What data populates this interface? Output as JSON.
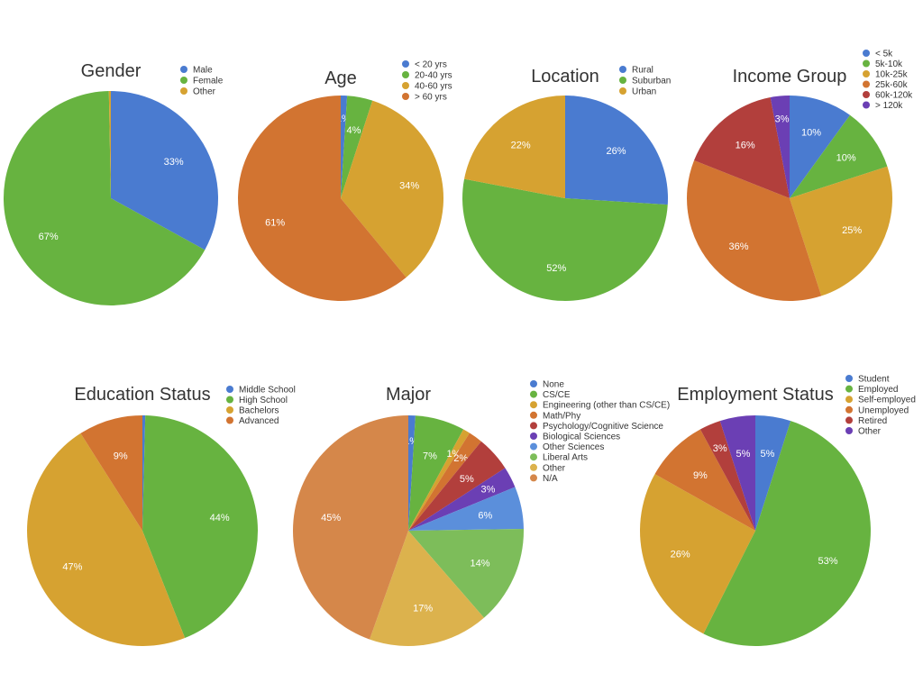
{
  "chart_data": [
    {
      "type": "pie",
      "title": "Gender",
      "slices": [
        {
          "label": "Male",
          "value": 33,
          "color": "#4a7bd0"
        },
        {
          "label": "Female",
          "value": 66.7,
          "color": "#67b340"
        },
        {
          "label": "Other",
          "value": 0.3,
          "color": "#d6a231"
        }
      ],
      "value_labels": [
        "33%",
        "67%",
        ""
      ]
    },
    {
      "type": "pie",
      "title": "Age",
      "slices": [
        {
          "label": "< 20 yrs",
          "value": 1,
          "color": "#4a7bd0"
        },
        {
          "label": "20-40 yrs",
          "value": 4,
          "color": "#67b340"
        },
        {
          "label": "40-60 yrs",
          "value": 34,
          "color": "#d6a231"
        },
        {
          "label": "> 60 yrs",
          "value": 61,
          "color": "#d27431"
        }
      ],
      "value_labels": [
        "1%",
        "4%",
        "34%",
        "61%"
      ]
    },
    {
      "type": "pie",
      "title": "Location",
      "slices": [
        {
          "label": "Rural",
          "value": 26,
          "color": "#4a7bd0"
        },
        {
          "label": "Suburban",
          "value": 52,
          "color": "#67b340"
        },
        {
          "label": "Urban",
          "value": 22,
          "color": "#d6a231"
        }
      ],
      "value_labels": [
        "26%",
        "52%",
        "22%"
      ]
    },
    {
      "type": "pie",
      "title": "Income Group",
      "slices": [
        {
          "label": "< 5k",
          "value": 10,
          "color": "#4a7bd0"
        },
        {
          "label": "5k-10k",
          "value": 10,
          "color": "#67b340"
        },
        {
          "label": "10k-25k",
          "value": 25,
          "color": "#d6a231"
        },
        {
          "label": "25k-60k",
          "value": 36,
          "color": "#d27431"
        },
        {
          "label": "60k-120k",
          "value": 16,
          "color": "#b23f3c"
        },
        {
          "label": "> 120k",
          "value": 3,
          "color": "#6b3fb4"
        }
      ],
      "value_labels": [
        "10%",
        "10%",
        "25%",
        "36%",
        "16%",
        "3%"
      ]
    },
    {
      "type": "pie",
      "title": "Education Status",
      "slices": [
        {
          "label": "Middle School",
          "value": 0.4,
          "color": "#4a7bd0"
        },
        {
          "label": "High School",
          "value": 43.6,
          "color": "#67b340"
        },
        {
          "label": "Bachelors",
          "value": 47,
          "color": "#d6a231"
        },
        {
          "label": "Advanced",
          "value": 9,
          "color": "#d27431"
        }
      ],
      "value_labels": [
        "",
        "44%",
        "47%",
        "9%"
      ]
    },
    {
      "type": "pie",
      "title": "Major",
      "slices": [
        {
          "label": "None",
          "value": 1,
          "color": "#4a7bd0"
        },
        {
          "label": "CS/CE",
          "value": 7,
          "color": "#67b340"
        },
        {
          "label": "Engineering (other than CS/CE)",
          "value": 1,
          "color": "#d6a231"
        },
        {
          "label": "Math/Phy",
          "value": 2,
          "color": "#d27431"
        },
        {
          "label": "Psychology/Cognitive Science",
          "value": 5,
          "color": "#b23f3c"
        },
        {
          "label": "Biological Sciences",
          "value": 3,
          "color": "#6b3fb4"
        },
        {
          "label": "Other Sciences",
          "value": 6,
          "color": "#5b8fdb"
        },
        {
          "label": "Liberal Arts",
          "value": 14,
          "color": "#7dbd5a"
        },
        {
          "label": "Other",
          "value": 17,
          "color": "#dcb24d"
        },
        {
          "label": "N/A",
          "value": 45,
          "color": "#d5874a"
        }
      ],
      "value_labels": [
        "1%",
        "7%",
        "1%",
        "2%",
        "5%",
        "3%",
        "6%",
        "14%",
        "17%",
        "45%"
      ]
    },
    {
      "type": "pie",
      "title": "Employment Status",
      "slices": [
        {
          "label": "Student",
          "value": 5,
          "color": "#4a7bd0"
        },
        {
          "label": "Employed",
          "value": 53,
          "color": "#67b340"
        },
        {
          "label": "Self-employed",
          "value": 26,
          "color": "#d6a231"
        },
        {
          "label": "Unemployed",
          "value": 9,
          "color": "#d27431"
        },
        {
          "label": "Retired",
          "value": 3,
          "color": "#b23f3c"
        },
        {
          "label": "Other",
          "value": 5,
          "color": "#6b3fb4"
        }
      ],
      "value_labels": [
        "5%",
        "53%",
        "26%",
        "9%",
        "3%",
        "5%"
      ]
    }
  ]
}
